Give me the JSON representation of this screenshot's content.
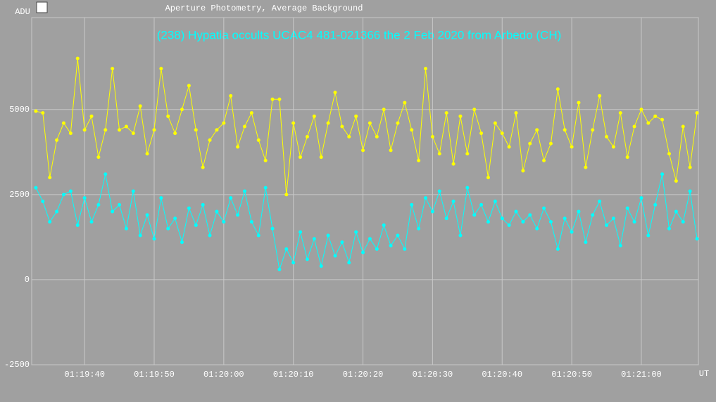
{
  "chart_data": {
    "type": "line",
    "title": "Aperture Photometry, Average Background",
    "subtitle": "(238) Hypatia occults UCAC4 481-021366 the 2 Feb 2020 from Arbedo (CH)",
    "ylabel": "ADU",
    "xlabel": "UT",
    "xlim": [
      4772.4,
      4868.2
    ],
    "xticks": [
      {
        "value": 4780,
        "label": "01:19:40"
      },
      {
        "value": 4790,
        "label": "01:19:50"
      },
      {
        "value": 4800,
        "label": "01:20:00"
      },
      {
        "value": 4810,
        "label": "01:20:10"
      },
      {
        "value": 4820,
        "label": "01:20:20"
      },
      {
        "value": 4830,
        "label": "01:20:30"
      },
      {
        "value": 4840,
        "label": "01:20:40"
      },
      {
        "value": 4850,
        "label": "01:20:50"
      },
      {
        "value": 4860,
        "label": "01:21:00"
      }
    ],
    "ylim": [
      -2500,
      7700
    ],
    "yticks": [
      -2500,
      0,
      2500,
      5000
    ],
    "grid": true,
    "x": [
      4773,
      4774,
      4775,
      4776,
      4777,
      4778,
      4779,
      4780,
      4781,
      4782,
      4783,
      4784,
      4785,
      4786,
      4787,
      4788,
      4789,
      4790,
      4791,
      4792,
      4793,
      4794,
      4795,
      4796,
      4797,
      4798,
      4799,
      4800,
      4801,
      4802,
      4803,
      4804,
      4805,
      4806,
      4807,
      4808,
      4809,
      4810,
      4811,
      4812,
      4813,
      4814,
      4815,
      4816,
      4817,
      4818,
      4819,
      4820,
      4821,
      4822,
      4823,
      4824,
      4825,
      4826,
      4827,
      4828,
      4829,
      4830,
      4831,
      4832,
      4833,
      4834,
      4835,
      4836,
      4837,
      4838,
      4839,
      4840,
      4841,
      4842,
      4843,
      4844,
      4845,
      4846,
      4847,
      4848,
      4849,
      4850,
      4851,
      4852,
      4853,
      4854,
      4855,
      4856,
      4857,
      4858,
      4859,
      4860,
      4861,
      4862,
      4863,
      4864,
      4865,
      4866,
      4867,
      4868
    ],
    "series": [
      {
        "color": "#ffff00",
        "values": [
          4950,
          4900,
          3000,
          4100,
          4600,
          4300,
          6500,
          4400,
          4800,
          3600,
          4400,
          6200,
          4400,
          4500,
          4300,
          5100,
          3700,
          4400,
          6200,
          4800,
          4300,
          5000,
          5700,
          4400,
          3300,
          4100,
          4400,
          4600,
          5400,
          3900,
          4500,
          4900,
          4100,
          3500,
          5300,
          5300,
          2500,
          4600,
          3600,
          4200,
          4800,
          3600,
          4600,
          5500,
          4500,
          4200,
          4800,
          3800,
          4600,
          4200,
          5000,
          3800,
          4600,
          5200,
          4400,
          3500,
          6200,
          4200,
          3700,
          4900,
          3400,
          4800,
          3700,
          5000,
          4300,
          3000,
          4600,
          4300,
          3900,
          4900,
          3200,
          4000,
          4400,
          3500,
          4000,
          5600,
          4400,
          3900,
          5200,
          3300,
          4400,
          5400,
          4200,
          3900,
          4900,
          3600,
          4500,
          5000,
          4600,
          4800,
          4700,
          3700,
          2900,
          4500,
          3300,
          4900
        ]
      },
      {
        "color": "#00ffff",
        "values": [
          2700,
          2300,
          1700,
          2000,
          2500,
          2600,
          1600,
          2400,
          1700,
          2200,
          3100,
          2000,
          2200,
          1500,
          2600,
          1300,
          1900,
          1200,
          2400,
          1500,
          1800,
          1100,
          2100,
          1600,
          2200,
          1300,
          2000,
          1700,
          2400,
          1900,
          2600,
          1700,
          1300,
          2700,
          1500,
          300,
          900,
          500,
          1400,
          600,
          1200,
          400,
          1300,
          700,
          1100,
          500,
          1400,
          800,
          1200,
          900,
          1600,
          1000,
          1300,
          900,
          2200,
          1500,
          2400,
          2000,
          2600,
          1800,
          2300,
          1300,
          2700,
          1900,
          2200,
          1700,
          2300,
          1800,
          1600,
          2000,
          1700,
          1900,
          1500,
          2100,
          1700,
          900,
          1800,
          1400,
          2000,
          1100,
          1900,
          2300,
          1600,
          1800,
          1000,
          2100,
          1700,
          2400,
          1300,
          2200,
          3100,
          1500,
          2000,
          1700,
          2600,
          1200
        ]
      }
    ]
  }
}
